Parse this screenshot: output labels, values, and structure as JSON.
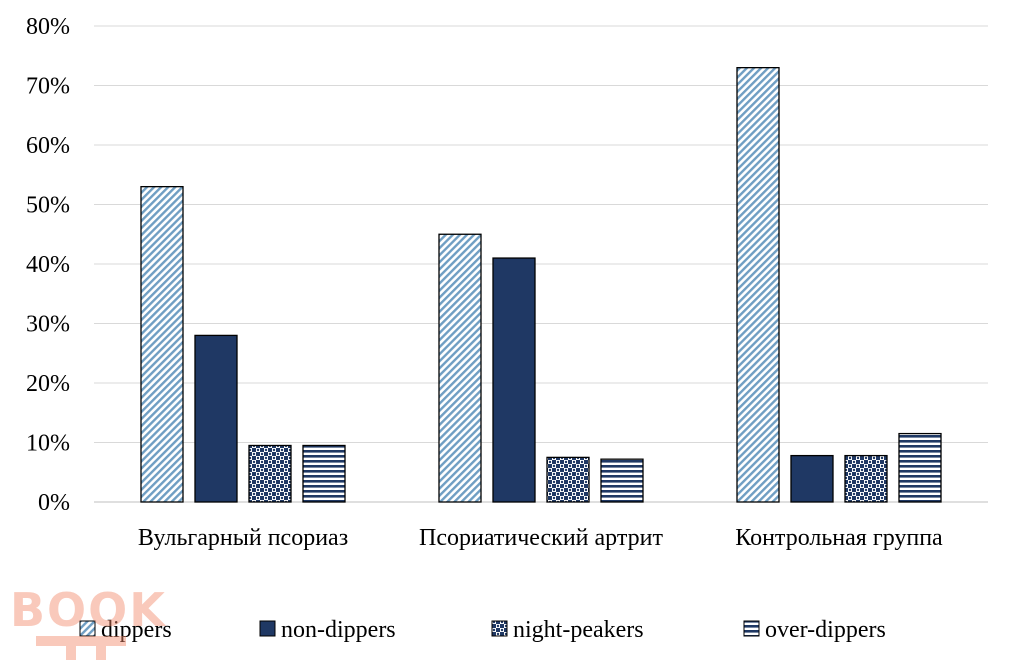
{
  "watermark": {
    "text": "BOOK"
  },
  "chart_data": {
    "type": "bar",
    "categories": [
      "Вульгарный псориаз",
      "Псориатический артрит",
      "Контрольная группа"
    ],
    "y_ticks": [
      "0%",
      "10%",
      "20%",
      "30%",
      "40%",
      "50%",
      "60%",
      "70%",
      "80%"
    ],
    "ylim": [
      0,
      80
    ],
    "grid": true,
    "legend_position": "bottom",
    "series": [
      {
        "name": "dippers",
        "values": [
          53,
          45,
          73
        ],
        "pattern": "diagonal-hatch",
        "color": "#6f9ec3"
      },
      {
        "name": "non-dippers",
        "values": [
          28,
          41,
          7.8
        ],
        "pattern": "solid",
        "color": "#1f3864"
      },
      {
        "name": "night-peakers",
        "values": [
          9.5,
          7.5,
          7.8
        ],
        "pattern": "checker",
        "color": "#1f3864"
      },
      {
        "name": "over-dippers",
        "values": [
          9.5,
          7.2,
          11.5
        ],
        "pattern": "horizontal-stripes",
        "color": "#1f3864"
      }
    ]
  }
}
